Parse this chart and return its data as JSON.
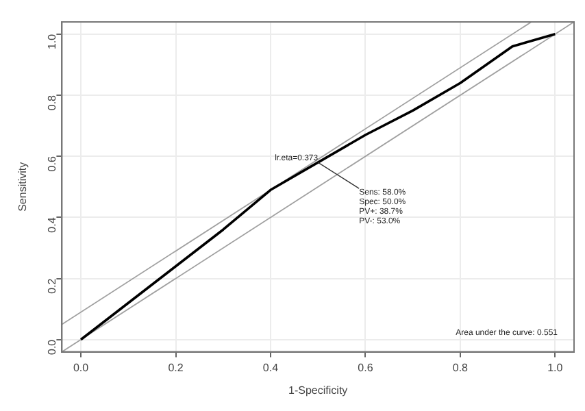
{
  "chart_data": {
    "type": "line",
    "xlabel": "1-Specificity",
    "ylabel": "Sensitivity",
    "xlim": [
      -0.04,
      1.04
    ],
    "ylim": [
      -0.04,
      1.04
    ],
    "xticks": [
      {
        "value": 0,
        "label": "0.0"
      },
      {
        "value": 0.2,
        "label": "0.2"
      },
      {
        "value": 0.4,
        "label": "0.4"
      },
      {
        "value": 0.6,
        "label": "0.6"
      },
      {
        "value": 0.8,
        "label": "0.8"
      },
      {
        "value": 1,
        "label": "1.0"
      }
    ],
    "yticks": [
      {
        "value": 0,
        "label": "0.0"
      },
      {
        "value": 0.2,
        "label": "0.2"
      },
      {
        "value": 0.4,
        "label": "0.4"
      },
      {
        "value": 0.6,
        "label": "0.6"
      },
      {
        "value": 0.8,
        "label": "0.8"
      },
      {
        "value": 1,
        "label": "1.0"
      }
    ],
    "grid": true,
    "legend": false,
    "marker": "none",
    "line_style": "solid",
    "series": [
      {
        "color": "#000000",
        "x": [
          0,
          0.1,
          0.2,
          0.3,
          0.4,
          0.5,
          0.6,
          0.7,
          0.8,
          0.91,
          1
        ],
        "values": [
          0,
          0.12,
          0.24,
          0.36,
          0.49,
          0.58,
          0.67,
          0.75,
          0.84,
          0.96,
          1
        ]
      },
      {
        "color": "#a0a0a0",
        "x": [
          -0.04,
          1.04
        ],
        "values": [
          -0.04,
          1.04
        ]
      },
      {
        "color": "#a0a0a0",
        "x": [
          -0.04,
          0.95
        ],
        "values": [
          0.05,
          1.04
        ]
      }
    ],
    "annotations": [
      {
        "text": "lr.eta=0.373",
        "x": 0.5,
        "y": 0.58
      },
      {
        "text": "Sens: 58.0%",
        "x": 0.5,
        "y": 0.58
      },
      "Spec: 50.0%",
      "PV+: 38.7%",
      "PV-: 53.0%",
      "Area under the curve: 0.551"
    ]
  }
}
